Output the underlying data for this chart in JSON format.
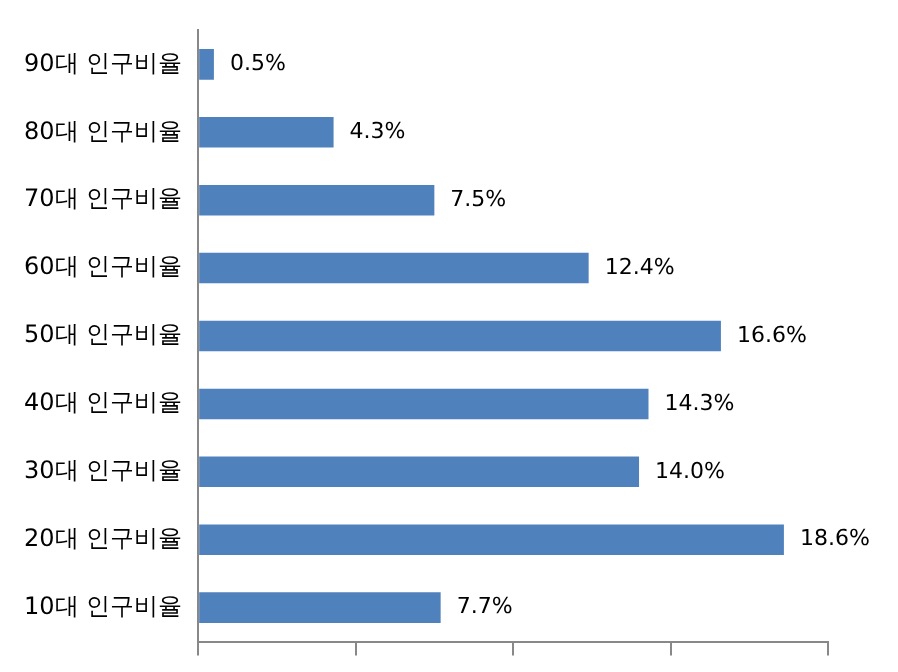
{
  "chart_data": {
    "type": "bar",
    "orientation": "horizontal",
    "categories": [
      "90대 인구비율",
      "80대 인구비율",
      "70대 인구비율",
      "60대 인구비율",
      "50대 인구비율",
      "40대 인구비율",
      "30대 인구비율",
      "20대 인구비율",
      "10대 인구비율"
    ],
    "values": [
      0.5,
      4.3,
      7.5,
      12.4,
      16.6,
      14.3,
      14.0,
      18.6,
      7.7
    ],
    "value_labels": [
      "0.5%",
      "4.3%",
      "7.5%",
      "12.4%",
      "16.6%",
      "14.3%",
      "14.0%",
      "18.6%",
      "7.7%"
    ],
    "color": "#4f81bd",
    "xlim": [
      0,
      20
    ],
    "xticks": [
      {
        "value": 0,
        "label": null
      },
      {
        "value": 5,
        "label": null
      },
      {
        "value": 10,
        "label": null
      },
      {
        "value": 15,
        "label": null
      },
      {
        "value": 20,
        "label": null
      }
    ],
    "tick_labels": "y",
    "grid": false
  }
}
